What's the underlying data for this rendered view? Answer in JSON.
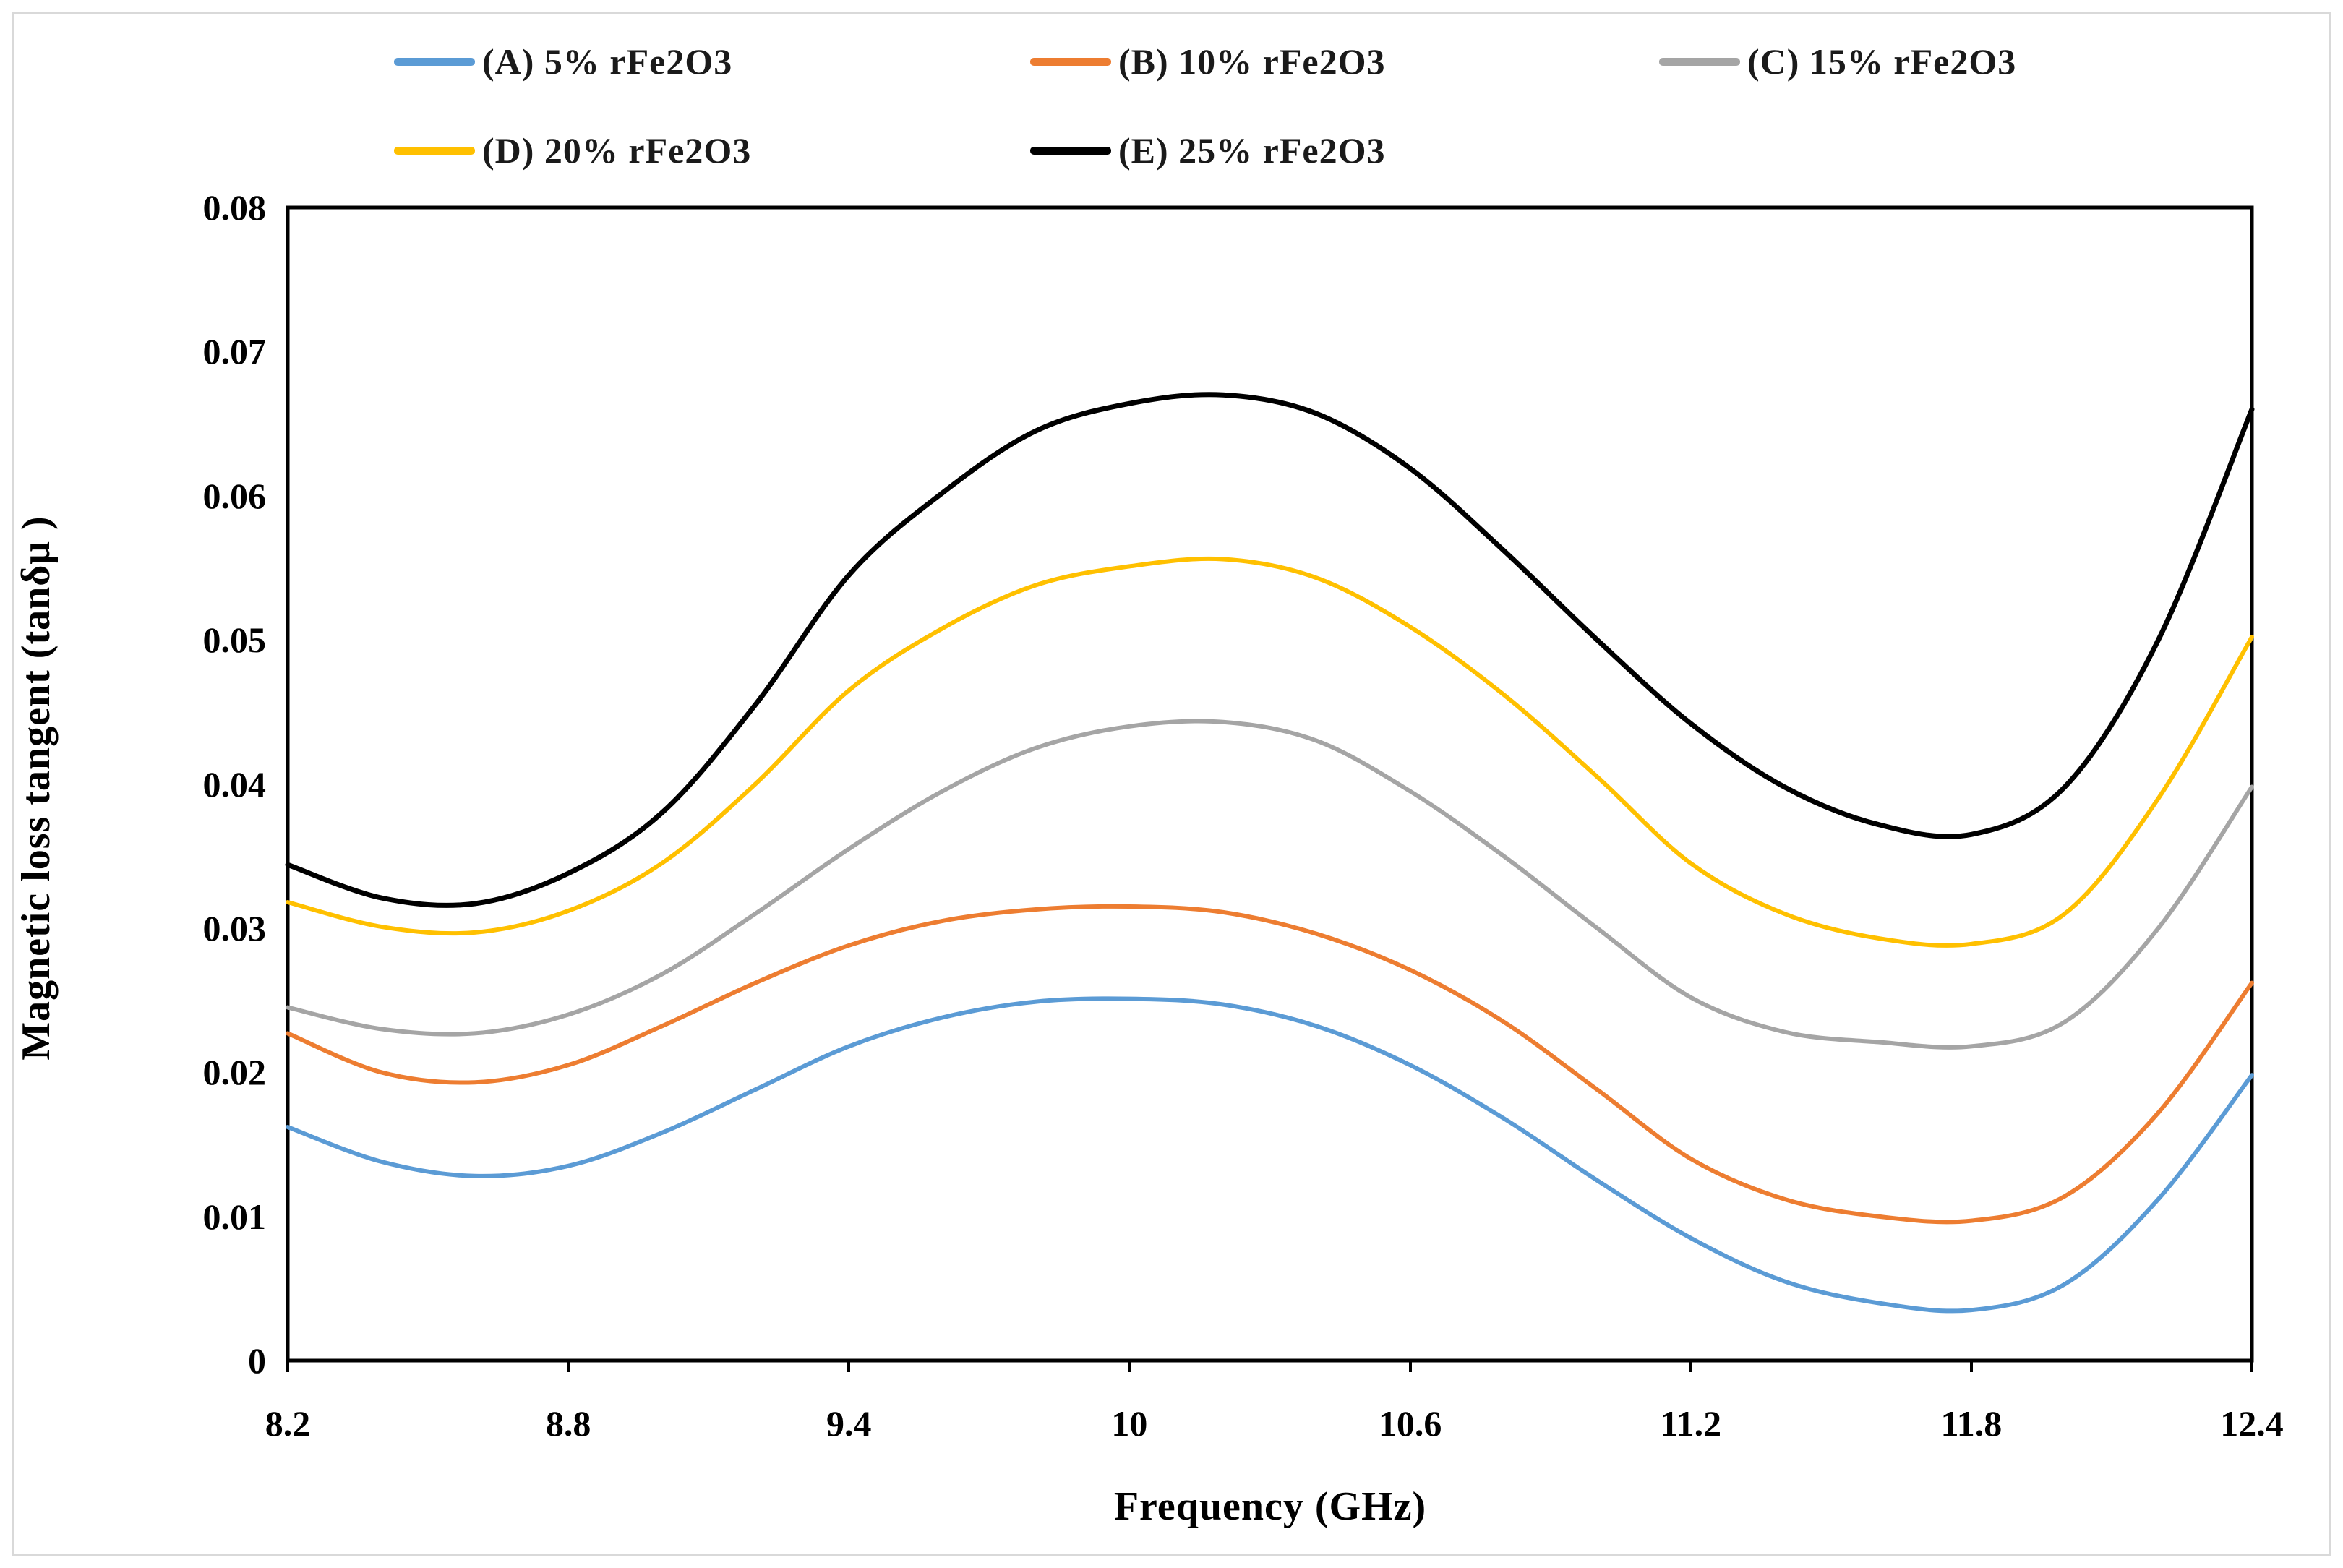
{
  "figure": {
    "border_color": "#d9d9d9",
    "background_color": "#ffffff"
  },
  "chart_data": {
    "type": "line",
    "title": "",
    "xlabel": "Frequency (GHz)",
    "ylabel": "Magnetic loss tangent (tanδμ )",
    "xlim": [
      8.2,
      12.4
    ],
    "ylim": [
      0,
      0.08
    ],
    "grid": false,
    "legend_position": "top",
    "x_tick_labels": [
      "8.2",
      "8.8",
      "9.4",
      "10",
      "10.6",
      "11.2",
      "11.8",
      "12.4"
    ],
    "x_tick_values": [
      8.2,
      8.8,
      9.4,
      10,
      10.6,
      11.2,
      11.8,
      12.4
    ],
    "y_tick_labels": [
      "0",
      "0.01",
      "0.02",
      "0.03",
      "0.04",
      "0.05",
      "0.06",
      "0.07",
      "0.08"
    ],
    "y_tick_values": [
      0,
      0.01,
      0.02,
      0.03,
      0.04,
      0.05,
      0.06,
      0.07,
      0.08
    ],
    "x": [
      8.2,
      8.4,
      8.6,
      8.8,
      9.0,
      9.2,
      9.4,
      9.6,
      9.8,
      10.0,
      10.2,
      10.4,
      10.6,
      10.8,
      11.0,
      11.2,
      11.4,
      11.6,
      11.8,
      12.0,
      12.2,
      12.4
    ],
    "series": [
      {
        "name": "(A) 5% rFe2O3",
        "color": "#5B9BD5",
        "line_width": 6,
        "values": [
          0.0162,
          0.0138,
          0.0128,
          0.0135,
          0.0158,
          0.0188,
          0.0218,
          0.0238,
          0.0249,
          0.0251,
          0.0247,
          0.0232,
          0.0205,
          0.0168,
          0.0125,
          0.0085,
          0.0055,
          0.004,
          0.0035,
          0.0053,
          0.0112,
          0.0198
        ]
      },
      {
        "name": "(B) 10% rFe2O3",
        "color": "#ED7D31",
        "line_width": 6,
        "values": [
          0.0227,
          0.02,
          0.0193,
          0.0205,
          0.0232,
          0.0262,
          0.0288,
          0.0305,
          0.0313,
          0.0315,
          0.0311,
          0.0296,
          0.0271,
          0.0235,
          0.0188,
          0.014,
          0.0112,
          0.01,
          0.0097,
          0.0114,
          0.0172,
          0.0262
        ]
      },
      {
        "name": "(C) 15% rFe2O3",
        "color": "#A5A5A5",
        "line_width": 6,
        "values": [
          0.0245,
          0.023,
          0.0227,
          0.024,
          0.0268,
          0.031,
          0.0355,
          0.0395,
          0.0425,
          0.044,
          0.0443,
          0.043,
          0.0395,
          0.035,
          0.03,
          0.0252,
          0.0228,
          0.0221,
          0.0218,
          0.0235,
          0.03,
          0.0398
        ]
      },
      {
        "name": "(D) 20% rFe2O3",
        "color": "#FFC000",
        "line_width": 6,
        "values": [
          0.0318,
          0.0301,
          0.0297,
          0.0312,
          0.0345,
          0.04,
          0.0465,
          0.0508,
          0.0538,
          0.0551,
          0.0556,
          0.0543,
          0.0509,
          0.0462,
          0.0405,
          0.0345,
          0.031,
          0.0293,
          0.0289,
          0.031,
          0.039,
          0.0502
        ]
      },
      {
        "name": "(E) 25% rFe2O3",
        "color": "#000000",
        "line_width": 7,
        "values": [
          0.0344,
          0.0321,
          0.0317,
          0.0338,
          0.038,
          0.0455,
          0.0545,
          0.0602,
          0.0645,
          0.0664,
          0.067,
          0.0657,
          0.0619,
          0.0562,
          0.05,
          0.0442,
          0.0398,
          0.0372,
          0.0365,
          0.0398,
          0.05,
          0.066
        ]
      }
    ]
  }
}
